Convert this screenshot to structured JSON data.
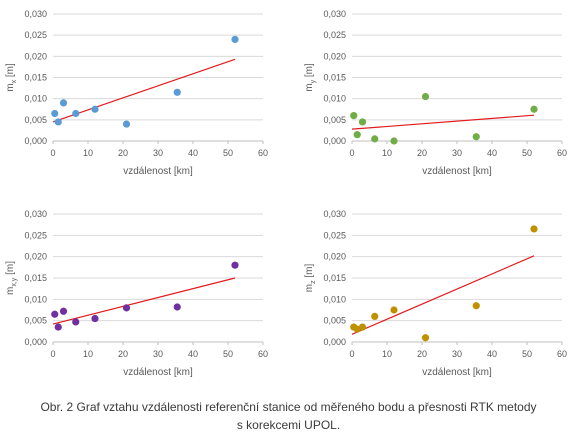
{
  "caption": {
    "line1": "Obr. 2 Graf vztahu vzdálenosti referenční stanice od měřeného bodu a přesnosti RTK metody",
    "line2": "s korekcemi UPOL."
  },
  "chart_data": [
    {
      "type": "scatter",
      "id": "mx",
      "ylabel_main": "m",
      "ylabel_sub": "x",
      "ylabel_unit": "[m]",
      "xlabel": "vzdálenost [km]",
      "xlim": [
        0,
        60
      ],
      "ylim": [
        0,
        0.03
      ],
      "xticks": [
        "0",
        "10",
        "20",
        "30",
        "40",
        "50",
        "60"
      ],
      "yticks": [
        "0,000",
        "0,005",
        "0,010",
        "0,015",
        "0,020",
        "0,025",
        "0,030"
      ],
      "color": "#5b9bd5",
      "trend_color": "#e31a1c",
      "x": [
        0.5,
        1.5,
        3,
        6.5,
        12,
        21,
        35.5,
        52
      ],
      "y": [
        0.0065,
        0.0045,
        0.009,
        0.0065,
        0.0075,
        0.004,
        0.0115,
        0.024
      ],
      "trend": {
        "x": [
          0,
          52
        ],
        "y": [
          0.0045,
          0.0193
        ]
      }
    },
    {
      "type": "scatter",
      "id": "my",
      "ylabel_main": "m",
      "ylabel_sub": "y",
      "ylabel_unit": "[m]",
      "xlabel": "vzdálenost [km]",
      "xlim": [
        0,
        60
      ],
      "ylim": [
        0,
        0.03
      ],
      "xticks": [
        "0",
        "10",
        "20",
        "30",
        "40",
        "50",
        "60"
      ],
      "yticks": [
        "0,000",
        "0,005",
        "0,010",
        "0,015",
        "0,020",
        "0,025",
        "0,030"
      ],
      "color": "#70ad47",
      "trend_color": "#e31a1c",
      "x": [
        0.5,
        1.5,
        3,
        6.5,
        12,
        21,
        35.5,
        52
      ],
      "y": [
        0.006,
        0.0015,
        0.0045,
        0.0005,
        0.0,
        0.0105,
        0.001,
        0.0075
      ],
      "trend": {
        "x": [
          0,
          52
        ],
        "y": [
          0.0028,
          0.0061
        ]
      }
    },
    {
      "type": "scatter",
      "id": "mxy",
      "ylabel_main": "m",
      "ylabel_sub": "x,y",
      "ylabel_unit": "[m]",
      "xlabel": "vzdálenost [km]",
      "xlim": [
        0,
        60
      ],
      "ylim": [
        0,
        0.03
      ],
      "xticks": [
        "0",
        "10",
        "20",
        "30",
        "40",
        "50",
        "60"
      ],
      "yticks": [
        "0,000",
        "0,005",
        "0,010",
        "0,015",
        "0,020",
        "0,025",
        "0,030"
      ],
      "color": "#7030a0",
      "trend_color": "#e31a1c",
      "x": [
        0.5,
        1.5,
        3,
        6.5,
        12,
        21,
        35.5,
        52
      ],
      "y": [
        0.0065,
        0.0035,
        0.0072,
        0.0047,
        0.0055,
        0.008,
        0.0082,
        0.018
      ],
      "trend": {
        "x": [
          0,
          52
        ],
        "y": [
          0.0042,
          0.015
        ]
      }
    },
    {
      "type": "scatter",
      "id": "mz",
      "ylabel_main": "m",
      "ylabel_sub": "z",
      "ylabel_unit": "[m]",
      "xlabel": "vzdálenost [km]",
      "xlim": [
        0,
        60
      ],
      "ylim": [
        0,
        0.03
      ],
      "xticks": [
        "0",
        "10",
        "20",
        "30",
        "40",
        "50",
        "60"
      ],
      "yticks": [
        "0,000",
        "0,005",
        "0,010",
        "0,015",
        "0,020",
        "0,025",
        "0,030"
      ],
      "color": "#bf9000",
      "trend_color": "#e31a1c",
      "x": [
        0.5,
        1.5,
        3,
        6.5,
        12,
        21,
        35.5,
        52
      ],
      "y": [
        0.0035,
        0.003,
        0.0035,
        0.006,
        0.0075,
        0.001,
        0.0085,
        0.0265
      ],
      "trend": {
        "x": [
          0,
          52
        ],
        "y": [
          0.0018,
          0.0202
        ]
      }
    }
  ]
}
